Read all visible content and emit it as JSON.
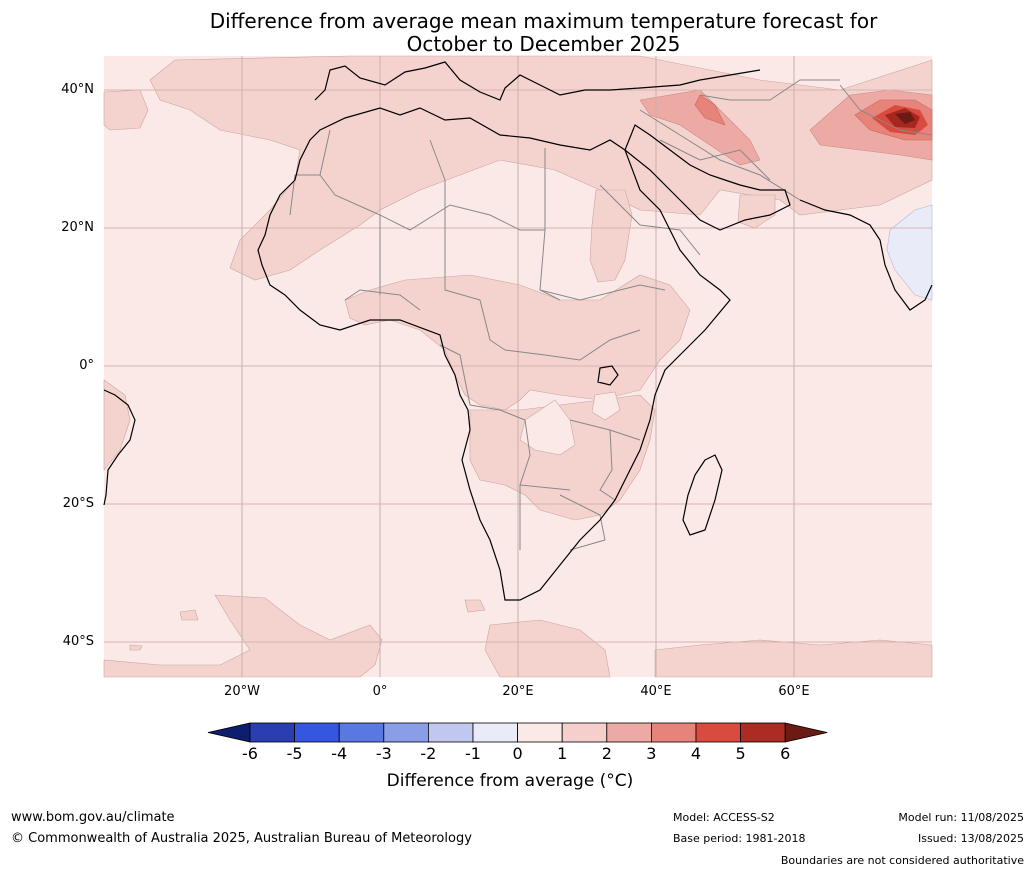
{
  "title": {
    "line1": "Difference from average mean maximum temperature forecast for",
    "line2": "October to December 2025"
  },
  "axes": {
    "lat_labels": [
      "40°N",
      "20°N",
      "0°",
      "20°S",
      "40°S"
    ],
    "lon_labels": [
      "20°W",
      "0°",
      "20°E",
      "40°E",
      "60°E"
    ]
  },
  "colorbar": {
    "ticks": [
      "-6",
      "-5",
      "-4",
      "-3",
      "-2",
      "-1",
      "0",
      "1",
      "2",
      "3",
      "4",
      "5",
      "6"
    ],
    "title": "Difference from average (°C)",
    "colors": [
      "#0d1e6e",
      "#2a3eb1",
      "#3556e0",
      "#5a78e2",
      "#8a9ee8",
      "#c0c8f0",
      "#e9ecf8",
      "#fbe9e7",
      "#f4cfcb",
      "#eda9a3",
      "#e6837b",
      "#d94b3f",
      "#ac2b22",
      "#6b1a14"
    ]
  },
  "map": {
    "ocean_color": "#fbe9e7",
    "land_color": "#fbe9e7",
    "anomaly_1_2_color": "#f4d3cf",
    "anomaly_2_3_color": "#eda9a3",
    "anomaly_3_4_color": "#e6837b",
    "anomaly_4_5_color": "#d94b3f",
    "anomaly_5_6_color": "#a52720",
    "anomaly_neg_color": "#e9ecf8"
  },
  "footer": {
    "url": "www.bom.gov.au/climate",
    "copyright": "© Commonwealth of Australia 2025, Australian Bureau of Meteorology",
    "model": "Model: ACCESS-S2",
    "base_period": "Base period: 1981-2018",
    "model_run": "Model run: 11/08/2025",
    "issued": "Issued: 13/08/2025",
    "disclaimer": "Boundaries are not considered authoritative"
  }
}
